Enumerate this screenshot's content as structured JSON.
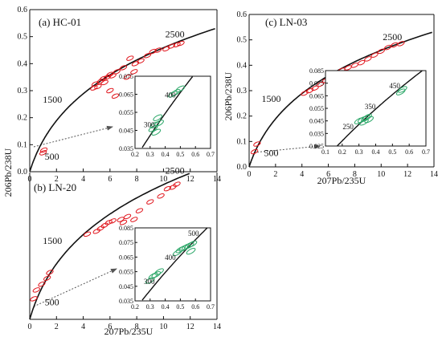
{
  "chart_data": [
    {
      "type": "scatter",
      "title": "(a) HC-01",
      "xlim": [
        0,
        14
      ],
      "ylim": [
        0,
        0.6
      ],
      "xticks": [
        "0",
        "2",
        "4",
        "6",
        "8",
        "10",
        "12",
        "14"
      ],
      "yticks": [
        "0.0",
        "0.1",
        "0.2",
        "0.3",
        "0.4",
        "0.5",
        "0.6"
      ],
      "ylabel": "206Pb/238U",
      "concordia_labels": [
        "500",
        "1500",
        "2500"
      ],
      "ellipse_color": "#e0141b",
      "ellipses": [
        [
          1.0,
          0.07
        ],
        [
          1.05,
          0.08
        ],
        [
          4.8,
          0.31
        ],
        [
          4.9,
          0.325
        ],
        [
          5.1,
          0.315
        ],
        [
          5.3,
          0.335
        ],
        [
          5.5,
          0.345
        ],
        [
          5.6,
          0.33
        ],
        [
          5.8,
          0.35
        ],
        [
          6.0,
          0.36
        ],
        [
          6.2,
          0.355
        ],
        [
          6.5,
          0.37
        ],
        [
          7.0,
          0.385
        ],
        [
          7.3,
          0.35
        ],
        [
          7.5,
          0.42
        ],
        [
          7.9,
          0.4
        ],
        [
          8.3,
          0.41
        ],
        [
          8.8,
          0.43
        ],
        [
          9.2,
          0.445
        ],
        [
          9.6,
          0.45
        ],
        [
          10.2,
          0.455
        ],
        [
          10.6,
          0.465
        ],
        [
          11.0,
          0.47
        ],
        [
          11.3,
          0.475
        ],
        [
          6.4,
          0.28
        ],
        [
          6.0,
          0.3
        ],
        [
          7.8,
          0.37
        ]
      ],
      "inset": {
        "xlim": [
          0.2,
          0.7
        ],
        "ylim": [
          0.035,
          0.075
        ],
        "xticks": [
          "0.2",
          "0.3",
          "0.4",
          "0.5",
          "0.6",
          "0.7"
        ],
        "yticks": [
          "0.035",
          "0.045",
          "0.055",
          "0.065",
          "0.075"
        ],
        "labels": [
          "300",
          "400"
        ],
        "ellipse_color": "#2ea86a",
        "ellipses": [
          [
            0.32,
            0.046
          ],
          [
            0.33,
            0.048
          ],
          [
            0.35,
            0.052
          ],
          [
            0.36,
            0.049
          ],
          [
            0.34,
            0.044
          ],
          [
            0.45,
            0.065
          ],
          [
            0.47,
            0.066
          ],
          [
            0.5,
            0.068
          ]
        ]
      }
    },
    {
      "type": "scatter",
      "title": "(b) LN-20",
      "xlim": [
        0,
        14
      ],
      "ylim": [
        0,
        0.5
      ],
      "xticks": [
        "0",
        "2",
        "4",
        "6",
        "8",
        "10",
        "12",
        "14"
      ],
      "xlabel": "207Pb/235U",
      "concordia_labels": [
        "500",
        "1500",
        "2500"
      ],
      "ellipse_color": "#e0141b",
      "ellipses": [
        [
          0.3,
          0.07
        ],
        [
          0.5,
          0.1
        ],
        [
          0.9,
          0.12
        ],
        [
          1.3,
          0.14
        ],
        [
          1.5,
          0.16
        ],
        [
          4.3,
          0.29
        ],
        [
          5.0,
          0.3
        ],
        [
          5.3,
          0.31
        ],
        [
          5.6,
          0.32
        ],
        [
          5.9,
          0.33
        ],
        [
          6.2,
          0.335
        ],
        [
          6.8,
          0.34
        ],
        [
          7.3,
          0.35
        ],
        [
          7.8,
          0.34
        ],
        [
          8.2,
          0.37
        ],
        [
          9.0,
          0.4
        ],
        [
          9.8,
          0.42
        ],
        [
          10.3,
          0.445
        ],
        [
          10.7,
          0.45
        ],
        [
          11.0,
          0.46
        ],
        [
          7.0,
          0.33
        ]
      ],
      "inset": {
        "xlim": [
          0.2,
          0.7
        ],
        "ylim": [
          0.035,
          0.085
        ],
        "xticks": [
          "0.2",
          "0.3",
          "0.4",
          "0.5",
          "0.6",
          "0.7"
        ],
        "yticks": [
          "0.035",
          "0.045",
          "0.055",
          "0.065",
          "0.075",
          "0.085"
        ],
        "labels": [
          "300",
          "400",
          "500"
        ],
        "ellipse_color": "#2ea86a",
        "ellipses": [
          [
            0.3,
            0.049
          ],
          [
            0.32,
            0.052
          ],
          [
            0.34,
            0.053
          ],
          [
            0.36,
            0.055
          ],
          [
            0.48,
            0.068
          ],
          [
            0.5,
            0.07
          ],
          [
            0.52,
            0.071
          ],
          [
            0.54,
            0.072
          ],
          [
            0.56,
            0.073
          ],
          [
            0.58,
            0.074
          ],
          [
            0.57,
            0.069
          ]
        ]
      }
    },
    {
      "type": "scatter",
      "title": "(c) LN-03",
      "xlim": [
        0,
        14
      ],
      "ylim": [
        0,
        0.6
      ],
      "xticks": [
        "0",
        "2",
        "4",
        "6",
        "8",
        "10",
        "12",
        "14"
      ],
      "yticks": [
        "0.0",
        "0.1",
        "0.2",
        "0.3",
        "0.4",
        "0.5",
        "0.6"
      ],
      "ylabel": "206Pb/238U",
      "xlabel": "207Pb/235U",
      "concordia_labels": [
        "500",
        "1500",
        "2500"
      ],
      "ellipse_color": "#e0141b",
      "ellipses": [
        [
          0.4,
          0.06
        ],
        [
          0.6,
          0.09
        ],
        [
          4.2,
          0.29
        ],
        [
          4.6,
          0.3
        ],
        [
          5.0,
          0.31
        ],
        [
          5.4,
          0.325
        ],
        [
          5.8,
          0.34
        ],
        [
          6.2,
          0.355
        ],
        [
          6.6,
          0.37
        ],
        [
          7.0,
          0.38
        ],
        [
          7.5,
          0.39
        ],
        [
          8.0,
          0.4
        ],
        [
          8.5,
          0.41
        ],
        [
          9.0,
          0.425
        ],
        [
          9.5,
          0.44
        ],
        [
          10.0,
          0.455
        ],
        [
          10.5,
          0.47
        ],
        [
          11.0,
          0.48
        ],
        [
          11.5,
          0.485
        ]
      ],
      "inset": {
        "xlim": [
          0.1,
          0.7
        ],
        "ylim": [
          0.025,
          0.085
        ],
        "xticks": [
          "0.1",
          "0.2",
          "0.3",
          "0.4",
          "0.5",
          "0.6",
          "0.7"
        ],
        "yticks": [
          "0.025",
          "0.035",
          "0.045",
          "0.055",
          "0.065",
          "0.075",
          "0.085"
        ],
        "labels": [
          "250",
          "350",
          "450"
        ],
        "ellipse_color": "#2ea86a",
        "ellipses": [
          [
            0.3,
            0.045
          ],
          [
            0.32,
            0.046
          ],
          [
            0.34,
            0.047
          ],
          [
            0.36,
            0.046
          ],
          [
            0.35,
            0.048
          ],
          [
            0.33,
            0.044
          ],
          [
            0.55,
            0.068
          ],
          [
            0.56,
            0.07
          ]
        ]
      }
    }
  ]
}
